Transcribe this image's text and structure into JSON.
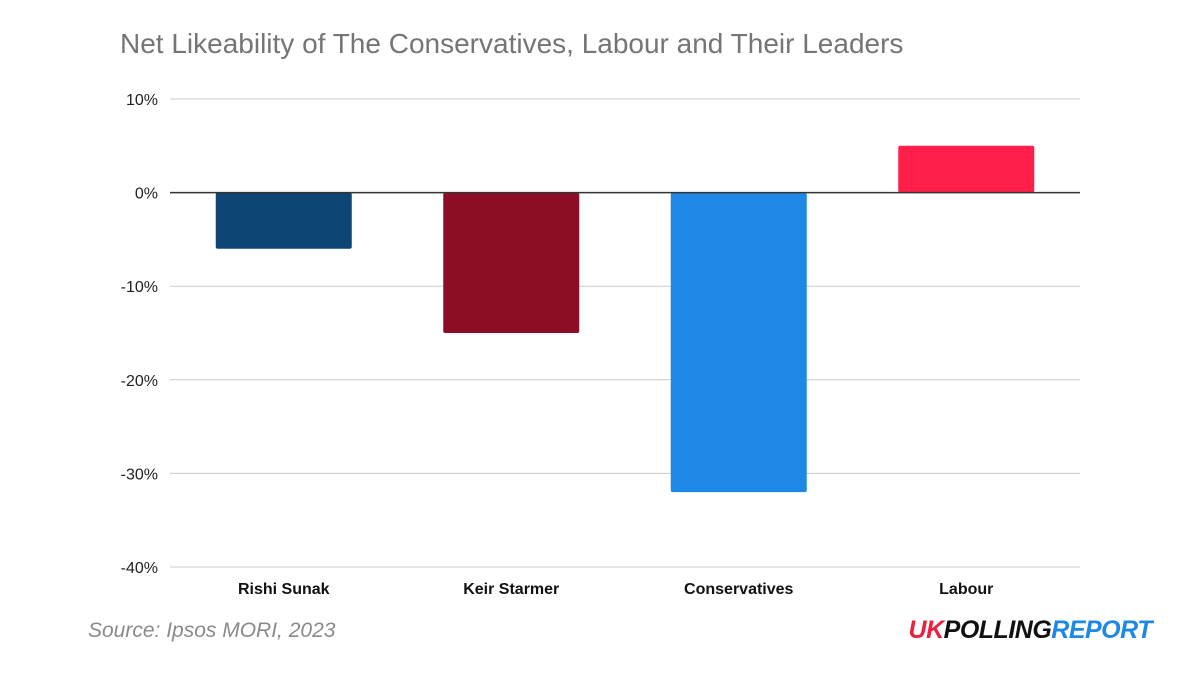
{
  "chart_data": {
    "type": "bar",
    "title": "Net Likeability of The Conservatives, Labour and Their Leaders",
    "categories": [
      "Rishi Sunak",
      "Keir Starmer",
      "Conservatives",
      "Labour"
    ],
    "values": [
      -6,
      -15,
      -32,
      5
    ],
    "value_unit": "%",
    "ylim": [
      -40,
      10
    ],
    "yticks": [
      10,
      0,
      -10,
      -20,
      -30,
      -40
    ],
    "ytick_labels": [
      "10%",
      "0%",
      "-10%",
      "-20%",
      "-30%",
      "-40%"
    ],
    "bar_colors": [
      "#0F4574",
      "#8B0D26",
      "#1F88E5",
      "#FF1F4A"
    ],
    "grid": true,
    "legend": "none"
  },
  "footer": {
    "source": "Source: Ipsos MORI, 2023",
    "brand_uk": "UK",
    "brand_polling": "POLLING",
    "brand_report": "REPORT",
    "brand_colors": {
      "uk": "#E8233F",
      "polling": "#111111",
      "report": "#1F88E5"
    }
  }
}
